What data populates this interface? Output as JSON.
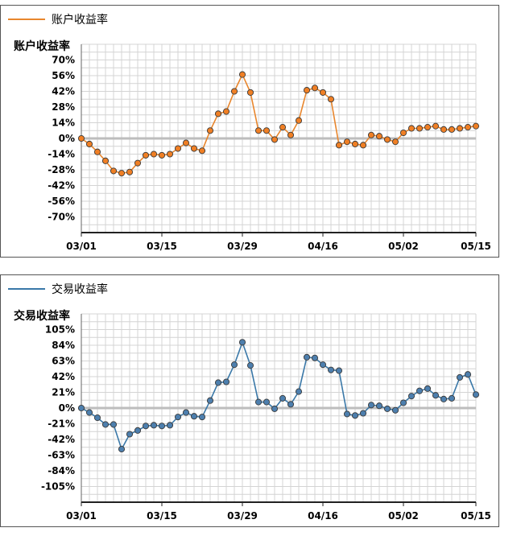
{
  "chart_data": [
    {
      "type": "line",
      "legend": "账户收益率",
      "title": "账户收益率",
      "color": "#e8862d",
      "marker_color": "#f07f24",
      "ylim": [
        -84,
        84
      ],
      "y_ticks": [
        70,
        56,
        42,
        28,
        14,
        0,
        -14,
        -28,
        -42,
        -56,
        -70
      ],
      "x_ticks": [
        "03/01",
        "03/15",
        "03/29",
        "04/16",
        "05/02",
        "05/15"
      ],
      "x_tick_index": [
        0,
        10,
        20,
        30,
        40,
        49
      ],
      "values": [
        0,
        -5,
        -12,
        -20,
        -29,
        -31,
        -30,
        -22,
        -15,
        -14,
        -15,
        -14,
        -9,
        -4,
        -9,
        -11,
        7,
        22,
        24,
        42,
        57,
        41,
        7,
        7,
        -1,
        10,
        3,
        16,
        43,
        45,
        41,
        35,
        -6,
        -3,
        -5,
        -6,
        3,
        2,
        -1,
        -3,
        5,
        9,
        9,
        10,
        11,
        8,
        8,
        9,
        10,
        11
      ]
    },
    {
      "type": "line",
      "legend": "交易收益率",
      "title": "交易收益率",
      "color": "#3a78a8",
      "marker_color": "#4d7fae",
      "ylim": [
        -126,
        126
      ],
      "y_ticks": [
        105,
        84,
        63,
        42,
        21,
        0,
        -21,
        -42,
        -63,
        -84,
        -105
      ],
      "x_ticks": [
        "03/01",
        "03/15",
        "03/29",
        "04/16",
        "05/02",
        "05/15"
      ],
      "x_tick_index": [
        0,
        10,
        20,
        30,
        40,
        49
      ],
      "values": [
        0,
        -6,
        -13,
        -22,
        -22,
        -55,
        -35,
        -30,
        -24,
        -23,
        -24,
        -23,
        -12,
        -6,
        -11,
        -12,
        10,
        34,
        35,
        58,
        88,
        57,
        8,
        8,
        -1,
        13,
        5,
        22,
        68,
        67,
        58,
        51,
        50,
        -8,
        -10,
        -7,
        4,
        3,
        -1,
        -3,
        7,
        16,
        23,
        26,
        17,
        12,
        13,
        41,
        45,
        18
      ]
    }
  ]
}
